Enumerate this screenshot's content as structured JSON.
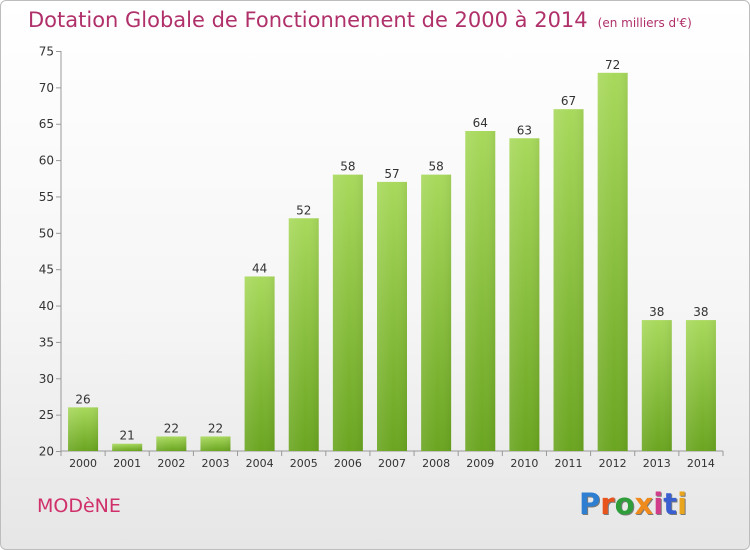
{
  "header": {
    "title": "Dotation Globale de Fonctionnement de 2000 à 2014",
    "subtitle": "(en milliers d'€)"
  },
  "footer": {
    "city": "MODèNE",
    "logo_text": "Proxiti",
    "logo_colors": [
      "#2e7fd1",
      "#e9541d",
      "#2e9d3a",
      "#ef8a1d",
      "#d13d8a",
      "#3a5fd1",
      "#e9a51d"
    ]
  },
  "colors": {
    "title": "#b0306a",
    "bar_light": "#a6d85a",
    "bar_dark": "#6ea823",
    "axis": "#999999",
    "grid": "#cccccc"
  },
  "chart_data": {
    "type": "bar",
    "categories": [
      "2000",
      "2001",
      "2002",
      "2003",
      "2004",
      "2005",
      "2006",
      "2007",
      "2008",
      "2009",
      "2010",
      "2011",
      "2012",
      "2013",
      "2014"
    ],
    "values": [
      26,
      21,
      22,
      22,
      44,
      52,
      58,
      57,
      58,
      64,
      63,
      67,
      72,
      38,
      38
    ],
    "ylim": [
      20,
      75
    ],
    "yticks": [
      20,
      25,
      30,
      35,
      40,
      45,
      50,
      55,
      60,
      65,
      70,
      75
    ],
    "grid": "horizontal-ticks"
  }
}
